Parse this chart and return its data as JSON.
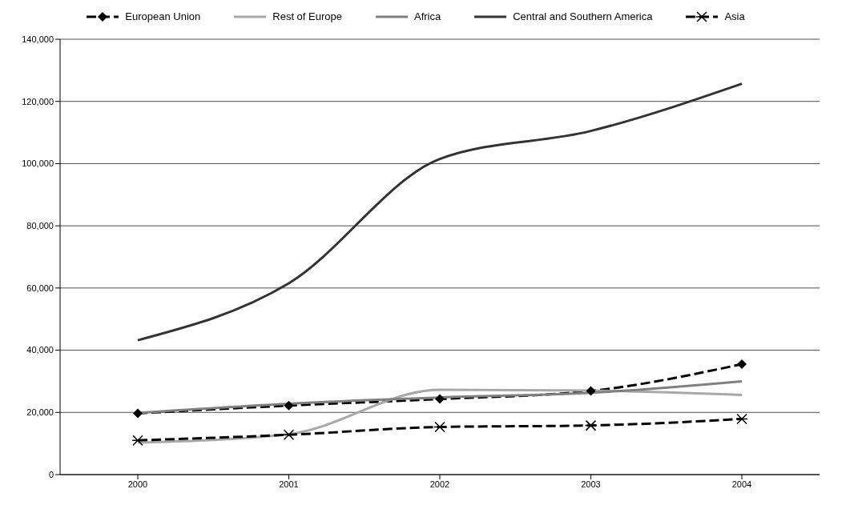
{
  "chart_data": {
    "type": "line",
    "categories": [
      "2000",
      "2001",
      "2002",
      "2003",
      "2004"
    ],
    "series": [
      {
        "name": "European Union",
        "color": "#000000",
        "values": [
          19700,
          22200,
          24300,
          26900,
          35500
        ],
        "marker": "diamond",
        "line_style": "dashed"
      },
      {
        "name": "Rest of Europe",
        "color": "#a8a8a8",
        "values": [
          10300,
          13000,
          27300,
          27000,
          25600
        ],
        "marker": "none",
        "line_style": "solid"
      },
      {
        "name": "Africa",
        "color": "#808080",
        "values": [
          19800,
          22800,
          24800,
          26300,
          30000
        ],
        "marker": "none",
        "line_style": "solid"
      },
      {
        "name": "Central and Southern America",
        "color": "#333333",
        "values": [
          43200,
          61500,
          101500,
          110500,
          125700
        ],
        "marker": "none",
        "line_style": "solid"
      },
      {
        "name": "Asia",
        "color": "#000000",
        "values": [
          11000,
          12800,
          15300,
          15800,
          17900
        ],
        "marker": "cross",
        "line_style": "dashed"
      }
    ],
    "ylim": [
      0,
      140000
    ],
    "yticks": [
      0,
      {
        "value": 20000,
        "label": "20,000"
      },
      {
        "value": 40000,
        "label": "40,000"
      },
      {
        "value": 60000,
        "label": "60,000"
      },
      {
        "value": 80000,
        "label": "80,000"
      },
      {
        "value": 100000,
        "label": "100,000"
      },
      {
        "value": 120000,
        "label": "120,000"
      },
      {
        "value": 140000,
        "label": "140,000"
      }
    ],
    "grid": "y",
    "legend": "top"
  }
}
